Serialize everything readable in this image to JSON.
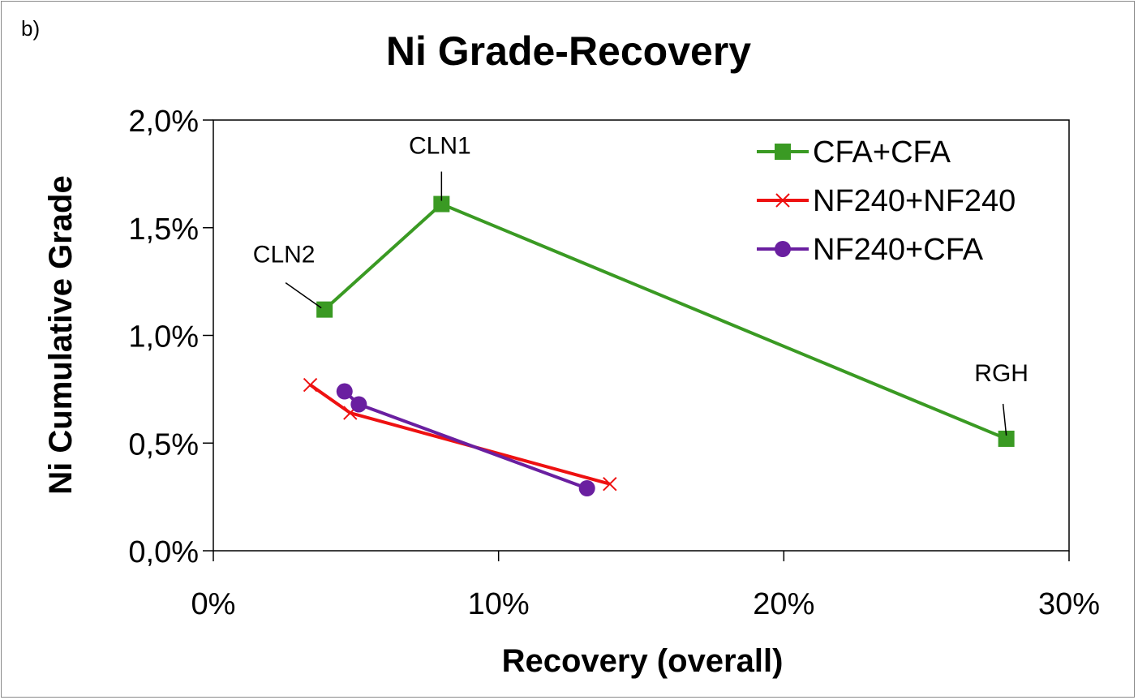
{
  "panel_label": "b)",
  "chart_data": {
    "type": "line",
    "title": "Ni Grade-Recovery",
    "xlabel": "Recovery (overall)",
    "ylabel": "Ni Cumulative Grade",
    "xlim": [
      0,
      30
    ],
    "ylim": [
      0,
      2.0
    ],
    "x_ticks": [
      0,
      10,
      20,
      30
    ],
    "x_tick_labels": [
      "0%",
      "10%",
      "20%",
      "30%"
    ],
    "y_ticks": [
      0,
      0.5,
      1.0,
      1.5,
      2.0
    ],
    "y_tick_labels": [
      "0,0%",
      "0,5%",
      "1,0%",
      "1,5%",
      "2,0%"
    ],
    "legend_position": "top-right",
    "series": [
      {
        "name": "CFA+CFA",
        "color": "#3a9a23",
        "marker": "square",
        "x": [
          3.9,
          8.0,
          27.8
        ],
        "y": [
          1.12,
          1.61,
          0.52
        ]
      },
      {
        "name": "NF240+NF240",
        "color": "#ee1111",
        "marker": "x",
        "x": [
          3.4,
          4.8,
          13.9
        ],
        "y": [
          0.77,
          0.64,
          0.31
        ]
      },
      {
        "name": "NF240+CFA",
        "color": "#6a1fa0",
        "marker": "circle",
        "x": [
          4.6,
          5.1,
          13.1
        ],
        "y": [
          0.74,
          0.68,
          0.29
        ]
      }
    ],
    "annotations": [
      {
        "text": "CLN1",
        "series": 0,
        "point": 1
      },
      {
        "text": "CLN2",
        "series": 0,
        "point": 0
      },
      {
        "text": "RGH",
        "series": 0,
        "point": 2
      }
    ]
  }
}
